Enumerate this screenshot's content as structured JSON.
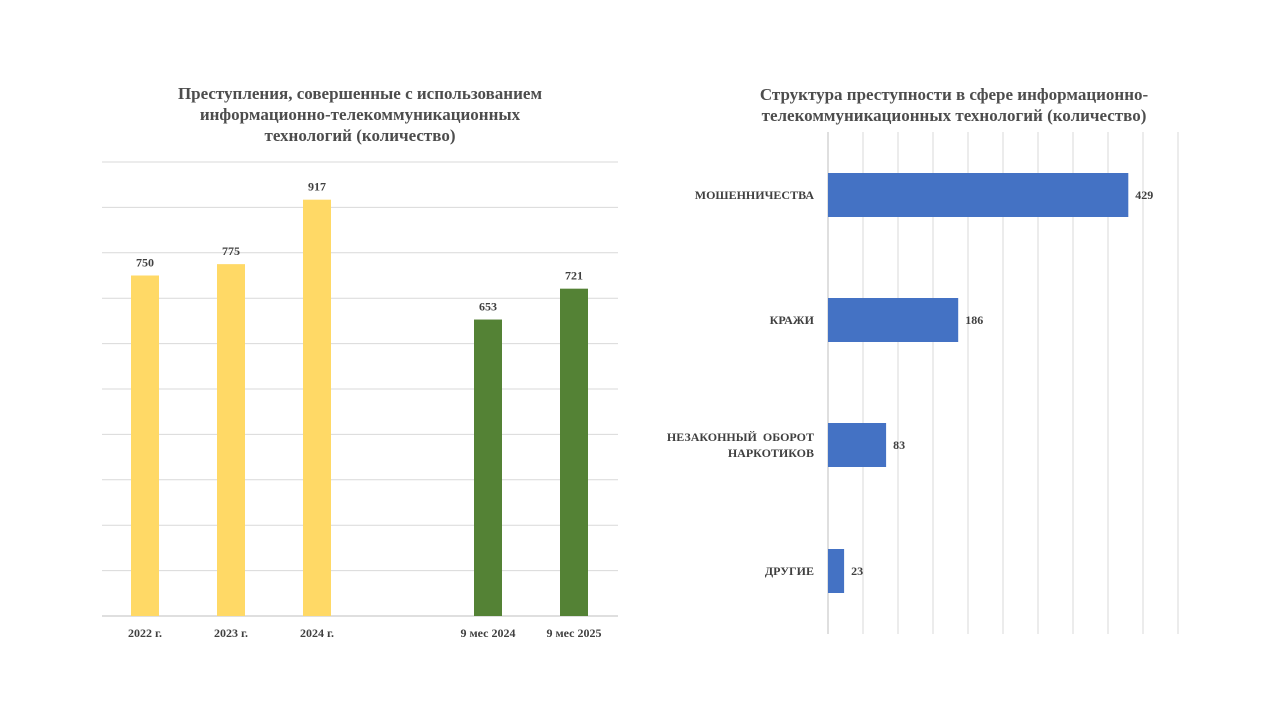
{
  "chart_data": [
    {
      "type": "bar",
      "title_lines": [
        "Преступления, совершенные с использованием",
        "информационно-телекоммуникационных",
        "технологий (количество)"
      ],
      "categories": [
        "2022 г.",
        "2023 г.",
        "2024 г.",
        "9 мес 2024",
        "9 мес 2025"
      ],
      "values": [
        750,
        775,
        917,
        653,
        721
      ],
      "bar_colors": [
        "#FFD966",
        "#FFD966",
        "#FFD966",
        "#548235",
        "#548235"
      ],
      "ylim": [
        0,
        1000
      ],
      "grid": true,
      "legend": "none"
    },
    {
      "type": "bar",
      "orientation": "horizontal",
      "title_lines": [
        "Структура преступности в сфере информационно-",
        "телекоммуникационных технологий (количество)"
      ],
      "categories": [
        [
          "МОШЕННИЧЕСТВА"
        ],
        [
          "КРАЖИ"
        ],
        [
          "НЕЗАКОННЫЙ  ОБОРОТ",
          "НАРКОТИКОВ"
        ],
        [
          "ДРУГИЕ"
        ]
      ],
      "values": [
        429,
        186,
        83,
        23
      ],
      "bar_color": "#4472C4",
      "xlim": [
        0,
        500
      ],
      "grid": true,
      "legend": "none"
    }
  ]
}
